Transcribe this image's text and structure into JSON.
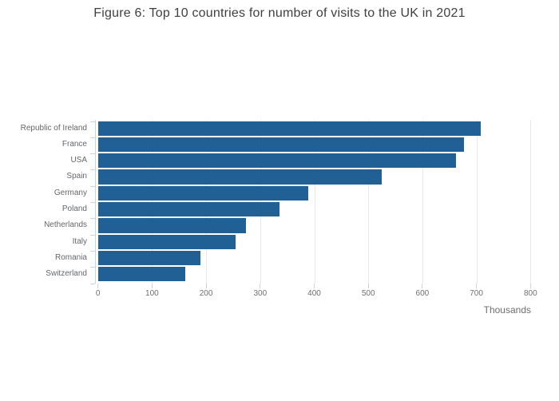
{
  "title": "Figure 6: Top 10 countries for number of visits to the UK in 2021",
  "chart_data": {
    "type": "bar",
    "orientation": "horizontal",
    "title": "Figure 6: Top 10 countries for number of visits to the UK in 2021",
    "categories": [
      "Republic of Ireland",
      "France",
      "USA",
      "Spain",
      "Germany",
      "Poland",
      "Netherlands",
      "Italy",
      "Romania",
      "Switzerland"
    ],
    "values": [
      708,
      677,
      662,
      525,
      389,
      336,
      273,
      255,
      190,
      162
    ],
    "xlabel": "Thousands",
    "ylabel": "",
    "xlim": [
      0,
      800
    ],
    "xticks": [
      0,
      100,
      200,
      300,
      400,
      500,
      600,
      700,
      800
    ],
    "grid": "vertical-only",
    "legend": "none",
    "bar_color": "#206095"
  },
  "colors": {
    "bar": "#206095",
    "grid": "#e8e8e8",
    "axis": "#c7d4e2",
    "title_text": "#3f3f3f",
    "tick_text": "#6e6e6e",
    "category_text": "#63666a"
  }
}
